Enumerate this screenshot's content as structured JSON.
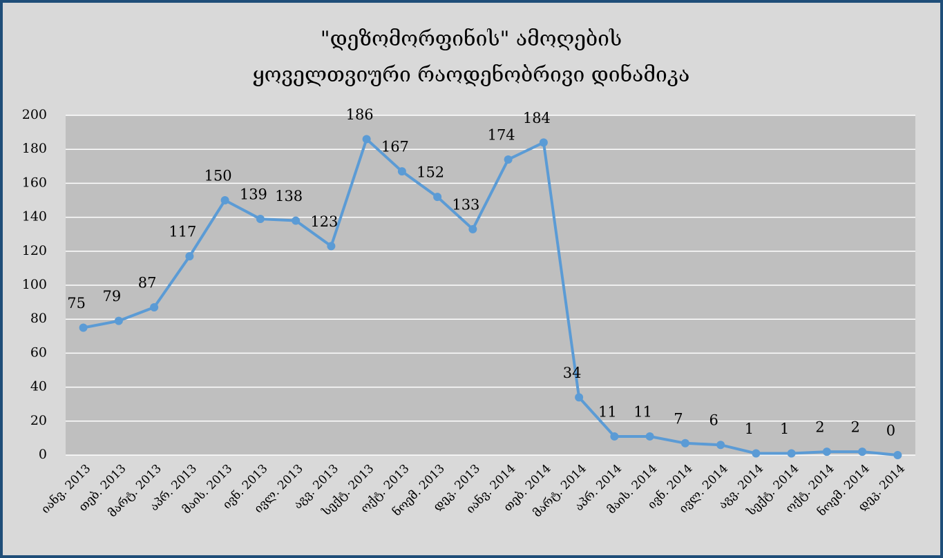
{
  "chart_data": {
    "type": "line",
    "title": [
      "\"დეზომორფინის\" ამოღების",
      "ყოველთვიური რაოდენობრივი დინამიკა"
    ],
    "categories": [
      "იანვ. 2013",
      "თებ. 2013",
      "მარტ. 2013",
      "აპრ. 2013",
      "მაის. 2013",
      "ივნ. 2013",
      "ივლ. 2013",
      "აგვ. 2013",
      "სექტ. 2013",
      "ოქტ. 2013",
      "ნოემ. 2013",
      "დეკ. 2013",
      "იანვ. 2014",
      "თებ. 2014",
      "მარტ. 2014",
      "აპრ. 2014",
      "მაის. 2014",
      "ივნ. 2014",
      "ივლ. 2014",
      "აგვ. 2014",
      "სექტ. 2014",
      "ოქტ. 2014",
      "ნოემ. 2014",
      "დეკ. 2014"
    ],
    "values": [
      75,
      79,
      87,
      117,
      150,
      139,
      138,
      123,
      186,
      167,
      152,
      133,
      174,
      184,
      34,
      11,
      11,
      7,
      6,
      1,
      1,
      2,
      2,
      0
    ],
    "color": "#5b9bd5",
    "ylim": [
      0,
      200
    ],
    "yticks": [
      0,
      20,
      40,
      60,
      80,
      100,
      120,
      140,
      160,
      180,
      200
    ],
    "grid": true
  }
}
